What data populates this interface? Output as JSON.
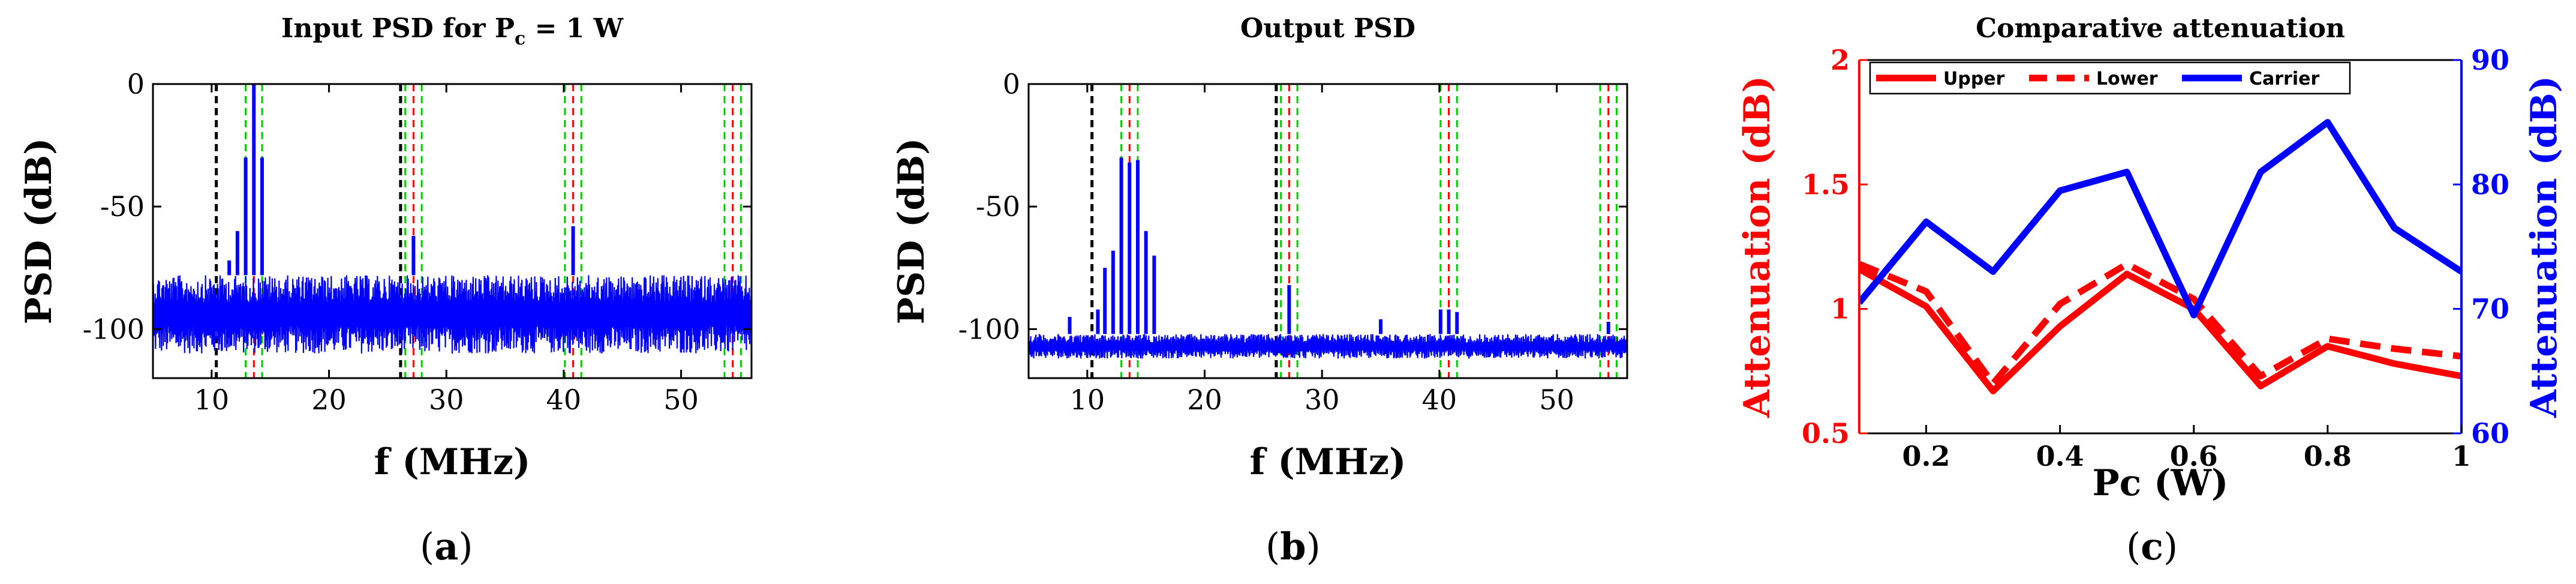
{
  "panels": {
    "a": {
      "title_main": "Input PSD for P",
      "title_sub": "c",
      "title_tail": " = 1 W",
      "caption_open": "(",
      "caption_letter": "a",
      "caption_close": ")"
    },
    "b": {
      "title": "Output PSD",
      "caption_open": "(",
      "caption_letter": "b",
      "caption_close": ")"
    },
    "c": {
      "title": "Comparative attenuation",
      "caption_open": "(",
      "caption_letter": "c",
      "caption_close": ")"
    }
  },
  "chart_data": [
    {
      "type": "line",
      "title": "Input PSD for Pc = 1 W",
      "xlabel": "f (MHz)",
      "ylabel": "PSD (dB)",
      "xlim": [
        5,
        56
      ],
      "ylim": [
        -120,
        0
      ],
      "xticks": [
        10,
        20,
        30,
        40,
        50
      ],
      "yticks": [
        0,
        -50,
        -100
      ],
      "noise_floor_db": [
        -110,
        -78
      ],
      "series": [
        {
          "color": "#0000ff",
          "peaks": [
            {
              "x": 11.5,
              "y": -72
            },
            {
              "x": 12.2,
              "y": -60
            },
            {
              "x": 12.9,
              "y": -30
            },
            {
              "x": 13.6,
              "y": 0
            },
            {
              "x": 14.3,
              "y": -30
            },
            {
              "x": 27.2,
              "y": -62
            },
            {
              "x": 40.8,
              "y": -58
            }
          ]
        }
      ],
      "vlines": [
        {
          "x": 10.4,
          "color": "#000000"
        },
        {
          "x": 26.1,
          "color": "#000000"
        },
        {
          "x": 12.9,
          "color": "#00cc00"
        },
        {
          "x": 13.6,
          "color": "#ff0000"
        },
        {
          "x": 14.3,
          "color": "#00cc00"
        },
        {
          "x": 26.5,
          "color": "#00cc00"
        },
        {
          "x": 27.2,
          "color": "#ff0000"
        },
        {
          "x": 27.9,
          "color": "#00cc00"
        },
        {
          "x": 40.1,
          "color": "#00cc00"
        },
        {
          "x": 40.8,
          "color": "#ff0000"
        },
        {
          "x": 41.5,
          "color": "#00cc00"
        },
        {
          "x": 53.7,
          "color": "#00cc00"
        },
        {
          "x": 54.4,
          "color": "#ff0000"
        },
        {
          "x": 55.1,
          "color": "#00cc00"
        }
      ]
    },
    {
      "type": "line",
      "title": "Output PSD",
      "xlabel": "f (MHz)",
      "ylabel": "PSD (dB)",
      "xlim": [
        5,
        56
      ],
      "ylim": [
        -120,
        0
      ],
      "xticks": [
        10,
        20,
        30,
        40,
        50
      ],
      "yticks": [
        0,
        -50,
        -100
      ],
      "noise_floor_db": [
        -112,
        -102
      ],
      "series": [
        {
          "color": "#0000ff",
          "peaks": [
            {
              "x": 8.5,
              "y": -95
            },
            {
              "x": 10.9,
              "y": -92
            },
            {
              "x": 11.5,
              "y": -75
            },
            {
              "x": 12.2,
              "y": -68
            },
            {
              "x": 12.9,
              "y": -30
            },
            {
              "x": 13.6,
              "y": -32
            },
            {
              "x": 14.3,
              "y": -31
            },
            {
              "x": 15.0,
              "y": -60
            },
            {
              "x": 15.7,
              "y": -70
            },
            {
              "x": 27.2,
              "y": -82
            },
            {
              "x": 35.0,
              "y": -96
            },
            {
              "x": 40.1,
              "y": -92
            },
            {
              "x": 40.8,
              "y": -92
            },
            {
              "x": 41.5,
              "y": -93
            },
            {
              "x": 54.4,
              "y": -97
            }
          ]
        }
      ],
      "vlines": [
        {
          "x": 10.4,
          "color": "#000000"
        },
        {
          "x": 26.1,
          "color": "#000000"
        },
        {
          "x": 12.9,
          "color": "#00cc00"
        },
        {
          "x": 13.6,
          "color": "#ff0000"
        },
        {
          "x": 14.3,
          "color": "#00cc00"
        },
        {
          "x": 26.5,
          "color": "#00cc00"
        },
        {
          "x": 27.2,
          "color": "#ff0000"
        },
        {
          "x": 27.9,
          "color": "#00cc00"
        },
        {
          "x": 40.1,
          "color": "#00cc00"
        },
        {
          "x": 40.8,
          "color": "#ff0000"
        },
        {
          "x": 41.5,
          "color": "#00cc00"
        },
        {
          "x": 53.7,
          "color": "#00cc00"
        },
        {
          "x": 54.4,
          "color": "#ff0000"
        },
        {
          "x": 55.1,
          "color": "#00cc00"
        }
      ]
    },
    {
      "type": "line",
      "title": "Comparative attenuation",
      "xlabel": "Pc (W)",
      "ylabel": "Attenuation (dB)",
      "ylabel_right": "Attenuation (dB)",
      "xlim": [
        0.1,
        1
      ],
      "ylim": [
        0.5,
        2
      ],
      "ylim_right": [
        60,
        90
      ],
      "xticks": [
        0.2,
        0.4,
        0.6,
        0.8,
        1
      ],
      "xtick_labels": [
        "0.2",
        "0.4",
        "0.6",
        "0.8",
        "1"
      ],
      "yticks": [
        0.5,
        1,
        1.5,
        2
      ],
      "ytick_labels": [
        "0.5",
        "1",
        "1.5",
        "2"
      ],
      "yticks_right": [
        60,
        70,
        80,
        90
      ],
      "ytick_labels_right": [
        "60",
        "70",
        "80",
        "90"
      ],
      "x": [
        0.1,
        0.2,
        0.3,
        0.4,
        0.5,
        0.6,
        0.7,
        0.8,
        0.9,
        1.0
      ],
      "series": [
        {
          "name": "Upper",
          "axis": "left",
          "color": "#ff0000",
          "dash": "solid",
          "values": [
            1.16,
            1.01,
            0.67,
            0.93,
            1.14,
            1.0,
            0.69,
            0.85,
            0.78,
            0.73
          ]
        },
        {
          "name": "Lower",
          "axis": "left",
          "color": "#ff0000",
          "dash": "dashed",
          "values": [
            1.18,
            1.07,
            0.7,
            1.02,
            1.18,
            1.04,
            0.73,
            0.88,
            0.84,
            0.81
          ]
        },
        {
          "name": "Carrier",
          "axis": "right",
          "color": "#0000ff",
          "dash": "solid",
          "values": [
            70.5,
            77.0,
            73.0,
            79.5,
            81.0,
            69.5,
            81.0,
            85.0,
            76.5,
            73.0
          ]
        }
      ],
      "legend": "top"
    }
  ]
}
